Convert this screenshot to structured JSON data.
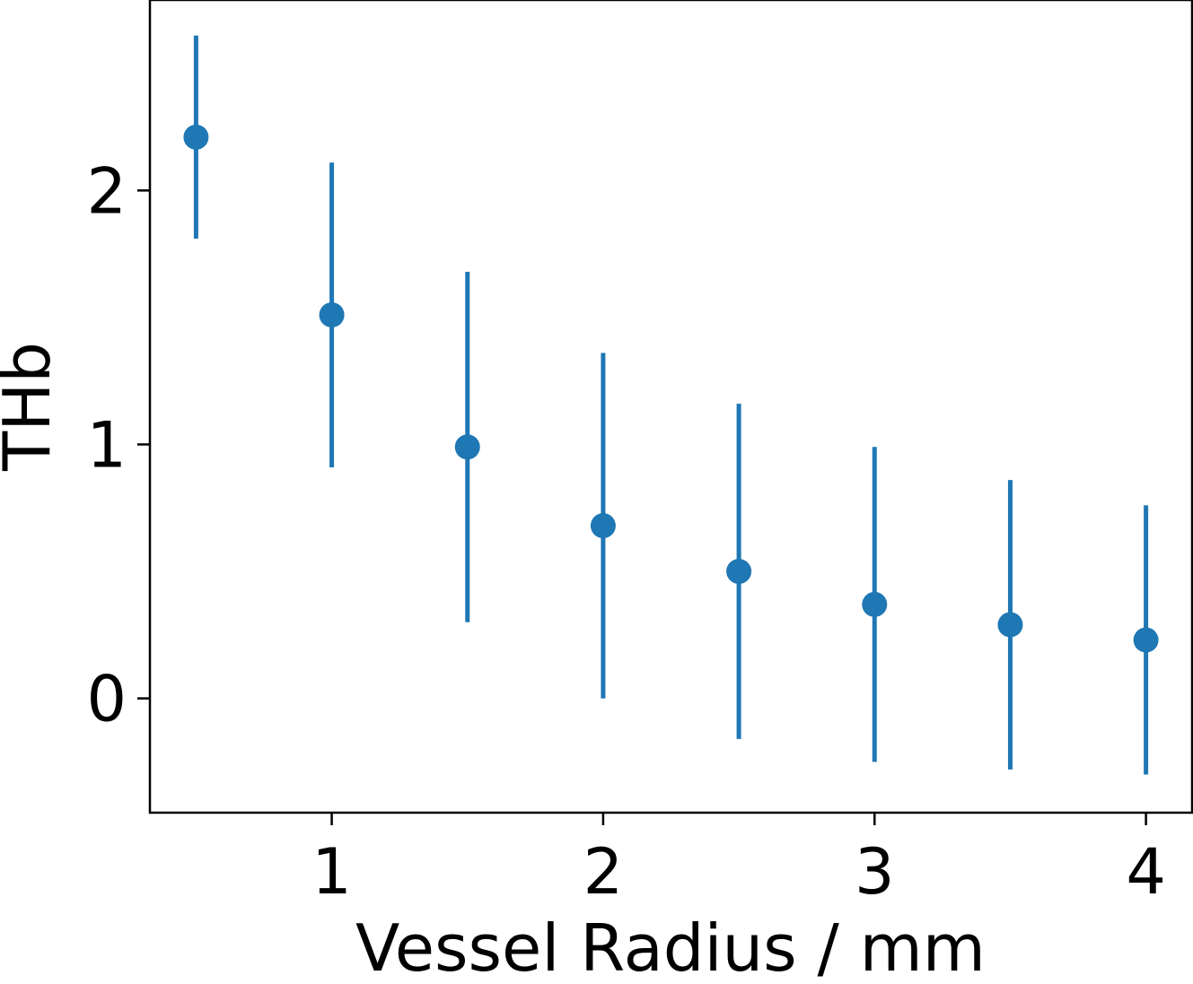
{
  "chart_data": {
    "type": "scatter",
    "error_bars": true,
    "xlabel": "Vessel Radius / mm",
    "ylabel": "THb",
    "xlim": [
      0.33,
      4.17
    ],
    "ylim": [
      -0.45,
      2.75
    ],
    "xticks": [
      1,
      2,
      3,
      4
    ],
    "xtick_labels": [
      "1",
      "2",
      "3",
      "4"
    ],
    "yticks": [
      0,
      1,
      2
    ],
    "ytick_labels": [
      "0",
      "1",
      "2"
    ],
    "grid": false,
    "series": [
      {
        "color": "#1f77b4",
        "x": [
          0.5,
          1.0,
          1.5,
          2.0,
          2.5,
          3.0,
          3.5,
          4.0
        ],
        "y": [
          2.21,
          1.51,
          0.99,
          0.68,
          0.5,
          0.37,
          0.29,
          0.23
        ],
        "err": [
          0.4,
          0.6,
          0.69,
          0.68,
          0.66,
          0.62,
          0.57,
          0.53
        ]
      }
    ]
  }
}
